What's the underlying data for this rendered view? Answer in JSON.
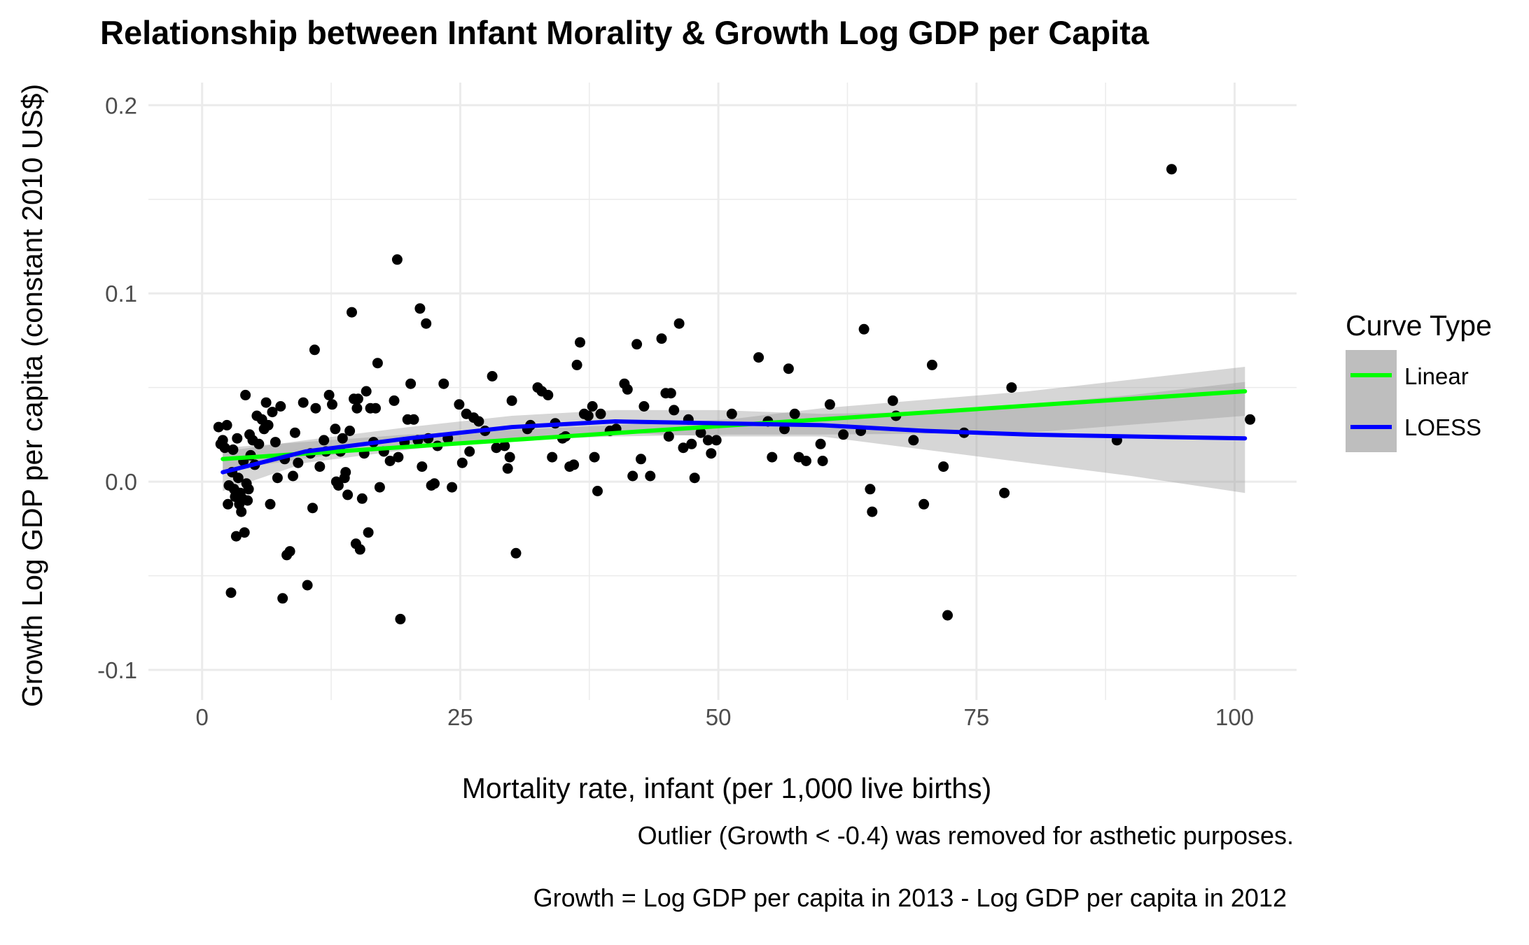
{
  "chart_data": {
    "type": "scatter",
    "title": "Relationship between Infant Morality & Growth Log GDP per Capita",
    "xlabel": "Mortality rate, infant (per 1,000 live births)",
    "ylabel": "Growth Log GDP per capita (constant 2010 US$)",
    "captions": [
      "Outlier (Growth < -0.4) was removed for asthetic purposes.",
      "Growth = Log GDP per capita in 2013 - Log GDP per capita in 2012"
    ],
    "xlim": [
      -5.2,
      106
    ],
    "ylim": [
      -0.116,
      0.212
    ],
    "x_ticks": [
      0,
      25,
      50,
      75,
      100
    ],
    "x_tick_labels": [
      "0",
      "25",
      "50",
      "75",
      "100"
    ],
    "y_ticks": [
      -0.1,
      0.0,
      0.1,
      0.2
    ],
    "y_tick_labels": [
      "-0.1",
      "0.0",
      "0.1",
      "0.2"
    ],
    "grid": true,
    "legend": {
      "title": "Curve Type",
      "position": "right",
      "entries": [
        {
          "label": "Linear",
          "color": "#00ff00"
        },
        {
          "label": "LOESS",
          "color": "#0000ff"
        }
      ]
    },
    "colors": {
      "points": "#000000",
      "band": "#999999",
      "linear": "#00ff00",
      "loess": "#0000ff"
    },
    "points": [
      [
        1.6,
        0.029
      ],
      [
        1.8,
        0.02
      ],
      [
        2.0,
        0.022
      ],
      [
        2.2,
        0.018
      ],
      [
        2.4,
        0.03
      ],
      [
        2.5,
        -0.012
      ],
      [
        2.6,
        -0.002
      ],
      [
        2.8,
        -0.059
      ],
      [
        2.9,
        0.005
      ],
      [
        3.0,
        0.017
      ],
      [
        3.1,
        -0.004
      ],
      [
        3.2,
        -0.008
      ],
      [
        3.3,
        -0.029
      ],
      [
        3.4,
        0.023
      ],
      [
        3.5,
        0.002
      ],
      [
        3.6,
        -0.012
      ],
      [
        3.7,
        -0.006
      ],
      [
        3.8,
        -0.016
      ],
      [
        3.9,
        -0.009
      ],
      [
        4.0,
        0.011
      ],
      [
        4.1,
        -0.027
      ],
      [
        4.2,
        0.046
      ],
      [
        4.3,
        -0.001
      ],
      [
        4.4,
        -0.01
      ],
      [
        4.5,
        -0.004
      ],
      [
        4.6,
        0.025
      ],
      [
        4.7,
        0.014
      ],
      [
        4.9,
        0.022
      ],
      [
        5.1,
        0.009
      ],
      [
        5.3,
        0.035
      ],
      [
        5.5,
        0.02
      ],
      [
        5.8,
        0.033
      ],
      [
        6.0,
        0.028
      ],
      [
        6.2,
        0.042
      ],
      [
        6.4,
        0.03
      ],
      [
        6.6,
        -0.012
      ],
      [
        6.8,
        0.037
      ],
      [
        7.1,
        0.021
      ],
      [
        7.3,
        0.002
      ],
      [
        7.6,
        0.04
      ],
      [
        7.8,
        -0.062
      ],
      [
        8.0,
        0.012
      ],
      [
        8.2,
        -0.039
      ],
      [
        8.5,
        -0.037
      ],
      [
        8.8,
        0.003
      ],
      [
        9.0,
        0.026
      ],
      [
        9.3,
        0.01
      ],
      [
        9.8,
        0.042
      ],
      [
        10.2,
        -0.055
      ],
      [
        10.5,
        0.015
      ],
      [
        10.7,
        -0.014
      ],
      [
        10.9,
        0.07
      ],
      [
        11.0,
        0.039
      ],
      [
        11.4,
        0.008
      ],
      [
        11.8,
        0.022
      ],
      [
        12.0,
        0.016
      ],
      [
        12.3,
        0.046
      ],
      [
        12.6,
        0.041
      ],
      [
        12.9,
        0.028
      ],
      [
        13.0,
        0.0
      ],
      [
        13.2,
        -0.002
      ],
      [
        13.4,
        0.016
      ],
      [
        13.6,
        0.023
      ],
      [
        13.8,
        0.002
      ],
      [
        13.9,
        0.005
      ],
      [
        14.1,
        -0.007
      ],
      [
        14.3,
        0.027
      ],
      [
        14.5,
        0.09
      ],
      [
        14.7,
        0.044
      ],
      [
        14.9,
        -0.033
      ],
      [
        15.0,
        0.039
      ],
      [
        15.1,
        0.044
      ],
      [
        15.3,
        -0.036
      ],
      [
        15.5,
        -0.009
      ],
      [
        15.7,
        0.015
      ],
      [
        15.9,
        0.048
      ],
      [
        16.1,
        -0.027
      ],
      [
        16.3,
        0.039
      ],
      [
        16.6,
        0.021
      ],
      [
        16.8,
        0.039
      ],
      [
        17.0,
        0.063
      ],
      [
        17.2,
        -0.003
      ],
      [
        17.6,
        0.016
      ],
      [
        18.2,
        0.011
      ],
      [
        18.6,
        0.043
      ],
      [
        18.9,
        0.118
      ],
      [
        19.0,
        0.013
      ],
      [
        19.2,
        -0.073
      ],
      [
        19.6,
        0.021
      ],
      [
        19.9,
        0.033
      ],
      [
        20.2,
        0.052
      ],
      [
        20.5,
        0.033
      ],
      [
        20.9,
        0.022
      ],
      [
        21.1,
        0.092
      ],
      [
        21.3,
        0.008
      ],
      [
        21.7,
        0.084
      ],
      [
        21.9,
        0.023
      ],
      [
        22.2,
        -0.002
      ],
      [
        22.5,
        -0.001
      ],
      [
        22.8,
        0.019
      ],
      [
        23.4,
        0.052
      ],
      [
        23.8,
        0.023
      ],
      [
        24.2,
        -0.003
      ],
      [
        24.9,
        0.041
      ],
      [
        25.2,
        0.01
      ],
      [
        25.6,
        0.036
      ],
      [
        25.9,
        0.016
      ],
      [
        26.3,
        0.034
      ],
      [
        26.8,
        0.032
      ],
      [
        27.4,
        0.027
      ],
      [
        28.1,
        0.056
      ],
      [
        28.5,
        0.018
      ],
      [
        29.3,
        0.019
      ],
      [
        29.6,
        0.007
      ],
      [
        29.8,
        0.013
      ],
      [
        30.0,
        0.043
      ],
      [
        30.4,
        -0.038
      ],
      [
        31.5,
        0.028
      ],
      [
        31.8,
        0.03
      ],
      [
        32.5,
        0.05
      ],
      [
        32.9,
        0.048
      ],
      [
        33.5,
        0.046
      ],
      [
        33.9,
        0.013
      ],
      [
        34.2,
        0.031
      ],
      [
        34.9,
        0.023
      ],
      [
        35.2,
        0.024
      ],
      [
        35.6,
        0.008
      ],
      [
        36.0,
        0.009
      ],
      [
        36.3,
        0.062
      ],
      [
        36.6,
        0.074
      ],
      [
        37.0,
        0.036
      ],
      [
        37.4,
        0.035
      ],
      [
        37.8,
        0.04
      ],
      [
        38.0,
        0.013
      ],
      [
        38.3,
        -0.005
      ],
      [
        38.6,
        0.036
      ],
      [
        39.5,
        0.027
      ],
      [
        40.1,
        0.028
      ],
      [
        40.9,
        0.052
      ],
      [
        41.2,
        0.049
      ],
      [
        41.7,
        0.003
      ],
      [
        42.1,
        0.073
      ],
      [
        42.5,
        0.012
      ],
      [
        42.8,
        0.04
      ],
      [
        43.4,
        0.003
      ],
      [
        44.5,
        0.076
      ],
      [
        44.9,
        0.047
      ],
      [
        45.2,
        0.024
      ],
      [
        45.4,
        0.047
      ],
      [
        45.7,
        0.038
      ],
      [
        46.2,
        0.084
      ],
      [
        46.6,
        0.018
      ],
      [
        47.1,
        0.033
      ],
      [
        47.4,
        0.02
      ],
      [
        47.7,
        0.002
      ],
      [
        48.3,
        0.026
      ],
      [
        49.0,
        0.022
      ],
      [
        49.3,
        0.015
      ],
      [
        49.8,
        0.022
      ],
      [
        51.3,
        0.036
      ],
      [
        53.9,
        0.066
      ],
      [
        54.8,
        0.032
      ],
      [
        55.2,
        0.013
      ],
      [
        56.4,
        0.028
      ],
      [
        56.8,
        0.06
      ],
      [
        57.4,
        0.036
      ],
      [
        57.8,
        0.013
      ],
      [
        58.5,
        0.011
      ],
      [
        59.9,
        0.02
      ],
      [
        60.1,
        0.011
      ],
      [
        60.8,
        0.041
      ],
      [
        62.1,
        0.025
      ],
      [
        63.8,
        0.027
      ],
      [
        64.1,
        0.081
      ],
      [
        64.7,
        -0.004
      ],
      [
        64.9,
        -0.016
      ],
      [
        66.9,
        0.043
      ],
      [
        67.2,
        0.035
      ],
      [
        68.9,
        0.022
      ],
      [
        69.9,
        -0.012
      ],
      [
        70.7,
        0.062
      ],
      [
        71.8,
        0.008
      ],
      [
        72.2,
        -0.071
      ],
      [
        73.8,
        0.026
      ],
      [
        77.7,
        -0.006
      ],
      [
        78.4,
        0.05
      ],
      [
        88.6,
        0.022
      ],
      [
        93.9,
        0.166
      ],
      [
        101.5,
        0.033
      ]
    ],
    "linear_fit": {
      "x": [
        2,
        101
      ],
      "y": [
        0.012,
        0.048
      ]
    },
    "linear_band": {
      "x": [
        2,
        20,
        40,
        51,
        60,
        80,
        101
      ],
      "lower": [
        0.006,
        0.02,
        0.024,
        0.025,
        0.025,
        0.026,
        0.035
      ],
      "upper": [
        0.018,
        0.025,
        0.03,
        0.033,
        0.039,
        0.048,
        0.061
      ]
    },
    "loess_fit": {
      "x": [
        2,
        10,
        20,
        30,
        40,
        50,
        60,
        70,
        80,
        90,
        101
      ],
      "y": [
        0.005,
        0.016,
        0.023,
        0.029,
        0.032,
        0.031,
        0.03,
        0.027,
        0.025,
        0.024,
        0.023
      ]
    },
    "loess_band": {
      "x": [
        2,
        10,
        20,
        30,
        40,
        50,
        60,
        70,
        80,
        90,
        101
      ],
      "lower": [
        -0.005,
        0.01,
        0.017,
        0.023,
        0.026,
        0.024,
        0.024,
        0.017,
        0.01,
        0.003,
        -0.006
      ],
      "upper": [
        0.016,
        0.022,
        0.029,
        0.035,
        0.038,
        0.038,
        0.036,
        0.037,
        0.041,
        0.046,
        0.053
      ]
    }
  }
}
